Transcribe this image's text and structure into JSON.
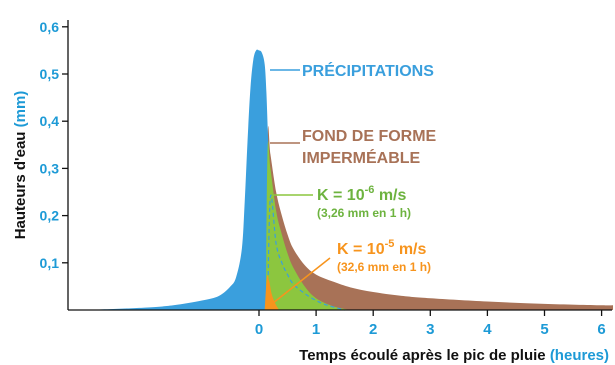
{
  "chart_data": {
    "type": "area",
    "title": "",
    "xlabel": "Temps écoulé après le pic de pluie",
    "xlabel_unit": "(heures)",
    "ylabel": "Hauteurs d'eau",
    "ylabel_unit": "(mm)",
    "xlim": [
      -3.2,
      6.2
    ],
    "ylim": [
      0,
      0.6
    ],
    "x_ticks": [
      0,
      1,
      2,
      3,
      4,
      5,
      6
    ],
    "x_tick_labels": [
      "0",
      "1",
      "2",
      "3",
      "4",
      "5",
      "6"
    ],
    "y_ticks": [
      0.1,
      0.2,
      0.3,
      0.4,
      0.5,
      0.6
    ],
    "y_tick_labels": [
      "0,1",
      "0,2",
      "0,3",
      "0,4",
      "0,5",
      "0,6"
    ],
    "colors": {
      "precipitations": "#3a9fdd",
      "fond_impermeable": "#a87257",
      "k6": "#8cc63f",
      "k5": "#f7941d",
      "tick": "#1d9ad6"
    },
    "series": [
      {
        "name": "PRÉCIPITATIONS",
        "x": [
          -3.0,
          -2.0,
          -1.5,
          -1.0,
          -0.7,
          -0.5,
          -0.4,
          -0.3,
          -0.25,
          -0.2,
          -0.15,
          -0.1,
          -0.05,
          0.0,
          0.05,
          0.1,
          0.13,
          0.16,
          0.2,
          0.25,
          0.3,
          0.35,
          0.4,
          0.5,
          0.7
        ],
        "values": [
          0.0,
          0.005,
          0.01,
          0.02,
          0.03,
          0.05,
          0.07,
          0.13,
          0.23,
          0.36,
          0.47,
          0.53,
          0.55,
          0.55,
          0.545,
          0.52,
          0.46,
          0.36,
          0.24,
          0.15,
          0.1,
          0.07,
          0.05,
          0.025,
          0.01
        ]
      },
      {
        "name": "FOND DE FORME IMPERMÉABLE",
        "x": [
          0.1,
          0.15,
          0.2,
          0.3,
          0.4,
          0.5,
          0.6,
          0.8,
          1.0,
          1.3,
          1.6,
          2.0,
          2.5,
          3.0,
          4.0,
          5.0,
          6.0,
          6.2
        ],
        "values": [
          0.0,
          0.37,
          0.33,
          0.25,
          0.2,
          0.16,
          0.13,
          0.095,
          0.075,
          0.06,
          0.048,
          0.038,
          0.03,
          0.025,
          0.018,
          0.013,
          0.01,
          0.01
        ]
      },
      {
        "name": "K = 10-6 m/s",
        "x": [
          0.12,
          0.15,
          0.2,
          0.3,
          0.4,
          0.5,
          0.6,
          0.8,
          1.0,
          1.3,
          1.6
        ],
        "values": [
          0.0,
          0.34,
          0.3,
          0.21,
          0.16,
          0.12,
          0.09,
          0.05,
          0.025,
          0.008,
          0.0
        ]
      },
      {
        "name": "K = 10-5 m/s",
        "x": [
          0.1,
          0.14,
          0.18,
          0.22,
          0.28,
          0.35
        ],
        "values": [
          0.0,
          0.07,
          0.06,
          0.035,
          0.015,
          0.0
        ]
      }
    ],
    "dashed_curve": {
      "x": [
        0.15,
        0.2,
        0.3,
        0.4,
        0.5,
        0.6,
        0.8,
        1.0,
        1.2,
        1.5
      ],
      "values": [
        0.0,
        0.24,
        0.14,
        0.1,
        0.075,
        0.055,
        0.035,
        0.02,
        0.01,
        0.0
      ]
    },
    "annotations": {
      "precip": "PRÉCIPITATIONS",
      "fond_line1": "FOND DE FORME",
      "fond_line2": "IMPERMÉABLE",
      "k6_base": "K = 10",
      "k6_exp": "-6",
      "k6_unit": " m/s",
      "k6_note": "(3,26 mm en 1 h)",
      "k5_base": "K = 10",
      "k5_exp": "-5",
      "k5_unit": " m/s",
      "k5_note": "(32,6 mm en 1 h)"
    },
    "grid": false,
    "legend": "none"
  }
}
